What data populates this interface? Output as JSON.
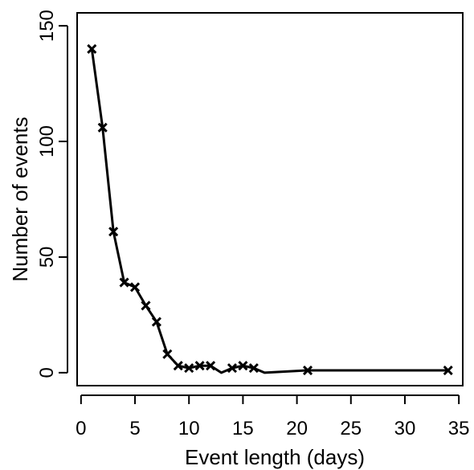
{
  "chart_data": {
    "type": "line",
    "title": "",
    "xlabel": "Event length (days)",
    "ylabel": "Number of events",
    "xlim": [
      -0.36,
      35.36
    ],
    "ylim": [
      -5.6,
      155.6
    ],
    "xticks": [
      0,
      5,
      10,
      15,
      20,
      25,
      30,
      35
    ],
    "yticks": [
      0,
      50,
      100,
      150
    ],
    "grid": false,
    "legend": "none",
    "series": [
      {
        "line_color": "#000000",
        "marker": "x",
        "points": [
          {
            "x": 1,
            "y": 140,
            "marked": true
          },
          {
            "x": 2,
            "y": 106,
            "marked": true
          },
          {
            "x": 3,
            "y": 61,
            "marked": true
          },
          {
            "x": 4,
            "y": 39,
            "marked": true
          },
          {
            "x": 5,
            "y": 37,
            "marked": true
          },
          {
            "x": 6,
            "y": 29,
            "marked": true
          },
          {
            "x": 7,
            "y": 22,
            "marked": true
          },
          {
            "x": 8,
            "y": 8,
            "marked": true
          },
          {
            "x": 9,
            "y": 3,
            "marked": true
          },
          {
            "x": 10,
            "y": 2,
            "marked": true
          },
          {
            "x": 11,
            "y": 3,
            "marked": true
          },
          {
            "x": 12,
            "y": 3,
            "marked": true
          },
          {
            "x": 13,
            "y": 0,
            "marked": false
          },
          {
            "x": 14,
            "y": 2,
            "marked": true
          },
          {
            "x": 15,
            "y": 3,
            "marked": true
          },
          {
            "x": 16,
            "y": 2,
            "marked": true
          },
          {
            "x": 17,
            "y": 0,
            "marked": false
          },
          {
            "x": 21,
            "y": 1,
            "marked": true
          },
          {
            "x": 34,
            "y": 1,
            "marked": true
          }
        ]
      }
    ]
  }
}
